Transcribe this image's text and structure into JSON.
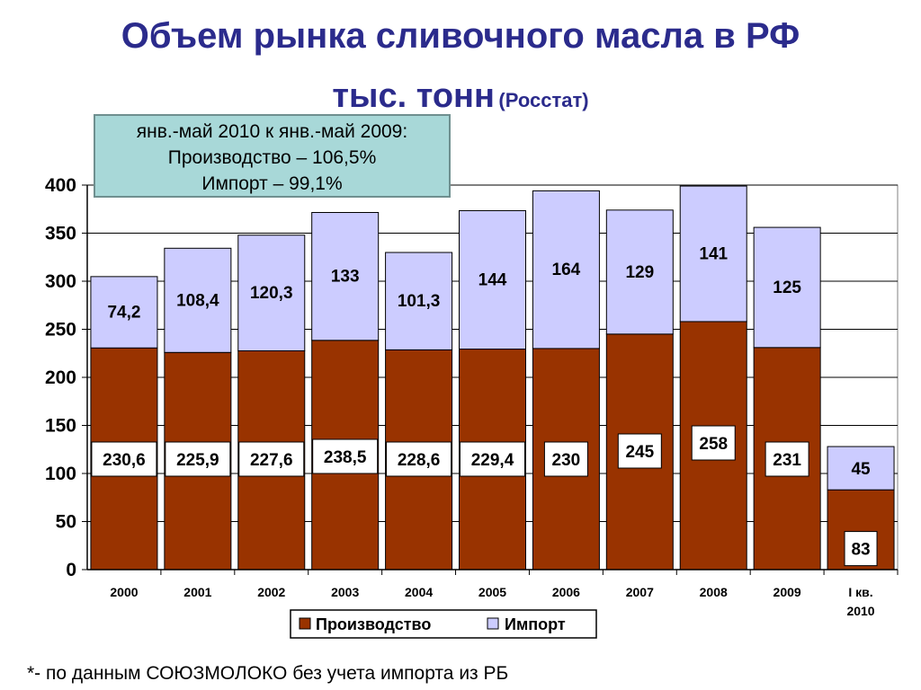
{
  "header": {
    "title": "Объем рынка сливочного масла в РФ",
    "subtitle_main": "тыс. тонн",
    "subtitle_source": "(Росстат)"
  },
  "note": {
    "line1": "янв.-май 2010 к янв.-май 2009:",
    "line2": "Производство – 106,5%",
    "line3": "Импорт – 99,1%"
  },
  "footnote": "*- по данным СОЮЗМОЛОКО без учета импорта из РБ",
  "chart_data": {
    "type": "bar",
    "stacked": true,
    "categories": [
      "2000",
      "2001",
      "2002",
      "2003",
      "2004",
      "2005",
      "2006",
      "2007",
      "2008",
      "2009",
      "I кв. 2010"
    ],
    "category_lines": [
      [
        "2000"
      ],
      [
        "2001"
      ],
      [
        "2002"
      ],
      [
        "2003"
      ],
      [
        "2004"
      ],
      [
        "2005"
      ],
      [
        "2006"
      ],
      [
        "2007"
      ],
      [
        "2008"
      ],
      [
        "2009"
      ],
      [
        "I кв.",
        "2010"
      ]
    ],
    "series": [
      {
        "name": "Производство",
        "color": "#993300",
        "values": [
          230.6,
          225.9,
          227.6,
          238.5,
          228.6,
          229.4,
          230,
          245,
          258,
          231,
          83
        ],
        "labels": [
          "230,6",
          "225,9",
          "227,6",
          "238,5",
          "228,6",
          "229,4",
          "230",
          "245",
          "258",
          "231",
          "83"
        ]
      },
      {
        "name": "Импорт",
        "color": "#ccccff",
        "values": [
          74.2,
          108.4,
          120.3,
          133,
          101.3,
          144,
          164,
          129,
          141,
          125,
          45
        ],
        "labels": [
          "74,2",
          "108,4",
          "120,3",
          "133",
          "101,3",
          "144",
          "164",
          "129",
          "141",
          "125",
          "45"
        ]
      }
    ],
    "ylim": [
      0,
      400
    ],
    "yticks": [
      0,
      50,
      100,
      150,
      200,
      250,
      300,
      350,
      400
    ],
    "grid": true,
    "legend_position": "bottom"
  }
}
